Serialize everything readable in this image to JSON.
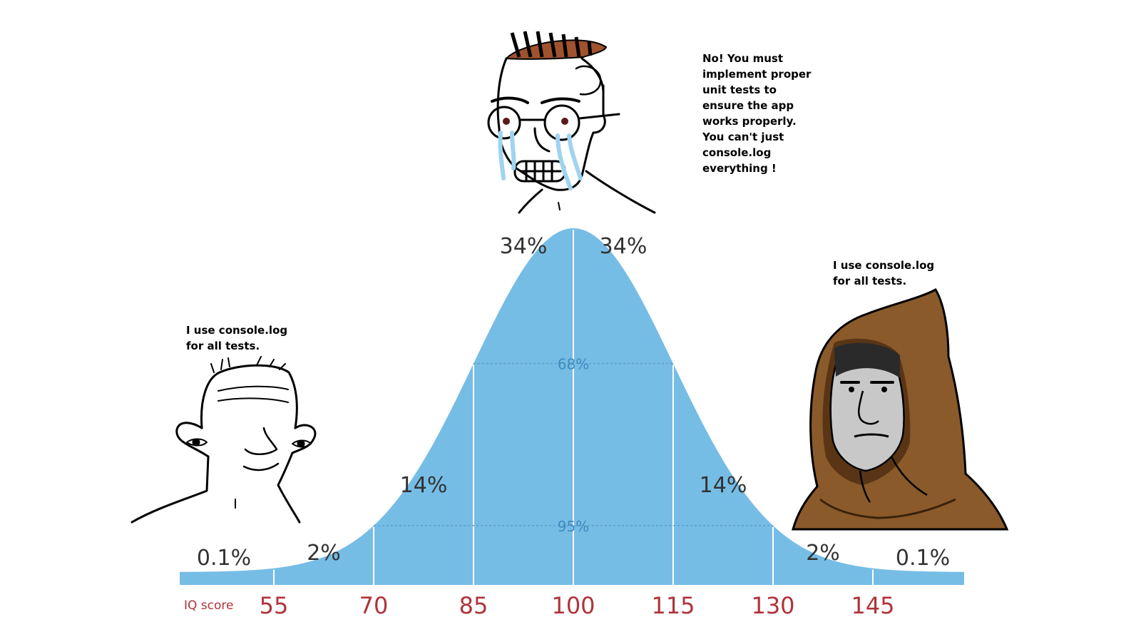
{
  "colors": {
    "curve_fill": "#76bde6",
    "tick_labels": "#b0333a",
    "percent_labels": "#333333",
    "band_labels": "#3e8bbd",
    "hair": "#a0522d",
    "tears": "#9fd4f0",
    "hood": "#8a5a2b",
    "hood_shadow": "#5a3515",
    "face_grey": "#c8c8c8"
  },
  "chart_data": {
    "type": "area",
    "distribution": "normal",
    "mean": 100,
    "sd": 15,
    "xlabel": "IQ score",
    "x_ticks": [
      55,
      70,
      85,
      100,
      115,
      130,
      145
    ],
    "xlim": [
      45,
      160
    ],
    "region_labels": [
      {
        "from": 40,
        "to": 55,
        "label": "0.1%"
      },
      {
        "from": 55,
        "to": 70,
        "label": "2%"
      },
      {
        "from": 70,
        "to": 85,
        "label": "14%"
      },
      {
        "from": 85,
        "to": 100,
        "label": "34%"
      },
      {
        "from": 100,
        "to": 115,
        "label": "34%"
      },
      {
        "from": 115,
        "to": 130,
        "label": "14%"
      },
      {
        "from": 130,
        "to": 145,
        "label": "2%"
      },
      {
        "from": 145,
        "to": 160,
        "label": "0.1%"
      }
    ],
    "bands": [
      {
        "from": 85,
        "to": 115,
        "label": "68%"
      },
      {
        "from": 70,
        "to": 130,
        "label": "95%"
      }
    ]
  },
  "characters": [
    {
      "id": "low-iq",
      "icon": "wojak-simple-icon",
      "lines": [
        "I use console.log",
        "for all tests."
      ]
    },
    {
      "id": "mid-iq",
      "icon": "crying-nerd-wojak-icon",
      "lines": [
        "No! You must",
        "implement proper",
        "unit tests to",
        "ensure the app",
        "works properly.",
        "You can't just",
        "console.log",
        "everything !"
      ]
    },
    {
      "id": "high-iq",
      "icon": "hooded-monk-wojak-icon",
      "lines": [
        "I use console.log",
        "for all tests."
      ]
    }
  ]
}
